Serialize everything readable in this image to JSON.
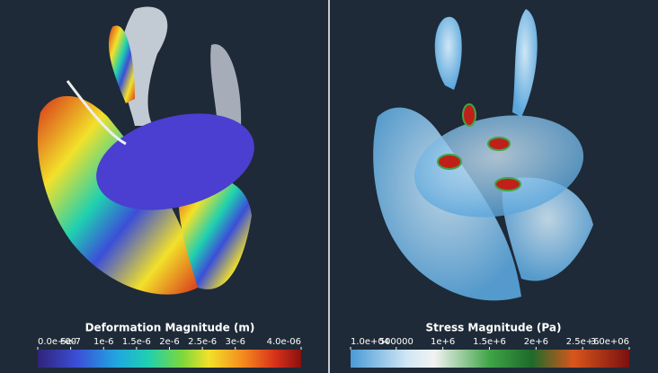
{
  "panels": [
    {
      "colorbar": {
        "title": "Deformation Magnitude  (m)",
        "range": [
          0,
          4e-06
        ],
        "ticks": [
          {
            "value": 0,
            "label": "0.0e+00"
          },
          {
            "value": 5e-07,
            "label": "5e-7"
          },
          {
            "value": 1e-06,
            "label": "1e-6"
          },
          {
            "value": 1.5e-06,
            "label": "1.5e-6"
          },
          {
            "value": 2e-06,
            "label": "2e-6"
          },
          {
            "value": 2.5e-06,
            "label": "2.5e-6"
          },
          {
            "value": 3e-06,
            "label": "3e-6"
          },
          {
            "value": 4e-06,
            "label": "4.0e-06"
          }
        ]
      }
    },
    {
      "colorbar": {
        "title": "Stress Magnitude (Pa)",
        "range": [
          10000,
          3000000
        ],
        "ticks": [
          {
            "value": 10000,
            "label": "1.0e+04"
          },
          500000,
          {
            "value": 1000000,
            "label": "1e+6"
          },
          {
            "value": 1500000,
            "label": "1.5e+6"
          },
          {
            "value": 2000000,
            "label": "2e+6"
          },
          {
            "value": 2500000,
            "label": "2.5e+6"
          },
          {
            "value": 3000000,
            "label": "3.0e+06"
          }
        ]
      }
    }
  ]
}
